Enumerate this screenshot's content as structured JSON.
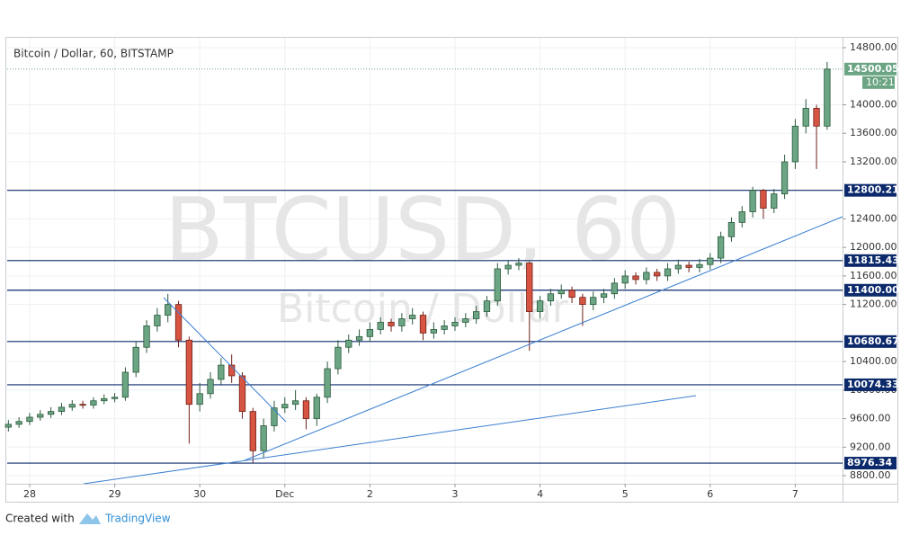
{
  "chart_data": {
    "type": "candlestick",
    "title": "Bitcoin / Dollar, 60, BITSTAMP",
    "watermark": "BTCUSD, 60",
    "watermark_subtitle": "Bitcoin / Dollar",
    "up_color": "#6ba583",
    "down_color": "#d75442",
    "level_color": "#0c2a6b",
    "x": [
      -0.25,
      -0.125,
      0,
      0.125,
      0.25,
      0.375,
      0.5,
      0.625,
      0.75,
      0.875,
      1,
      1.125,
      1.25,
      1.375,
      1.5,
      1.625,
      1.75,
      1.875,
      2,
      2.125,
      2.25,
      2.375,
      2.5,
      2.625,
      2.75,
      2.875,
      3,
      3.125,
      3.25,
      3.375,
      3.5,
      3.625,
      3.75,
      3.875,
      4,
      4.125,
      4.25,
      4.375,
      4.5,
      4.625,
      4.75,
      4.875,
      5,
      5.125,
      5.25,
      5.375,
      5.5,
      5.625,
      5.75,
      5.875,
      6,
      6.125,
      6.25,
      6.375,
      6.5,
      6.625,
      6.75,
      6.875,
      7,
      7.125,
      7.25,
      7.375,
      7.5,
      7.625,
      7.75,
      7.875,
      8,
      8.125,
      8.25,
      8.375,
      8.5,
      8.625,
      8.75,
      8.875,
      9,
      9.125,
      9.25,
      9.375
    ],
    "open": [
      9480,
      9520,
      9560,
      9620,
      9660,
      9700,
      9760,
      9800,
      9790,
      9850,
      9880,
      9900,
      10250,
      10600,
      10900,
      11050,
      11200,
      10700,
      9800,
      9950,
      10150,
      10350,
      10200,
      9700,
      9150,
      9500,
      9750,
      9800,
      9850,
      9600,
      9900,
      10300,
      10600,
      10700,
      10750,
      10850,
      10950,
      10900,
      11000,
      11050,
      10800,
      10850,
      10900,
      10950,
      11000,
      11100,
      11250,
      11700,
      11750,
      11780,
      11100,
      11250,
      11350,
      11400,
      11300,
      11200,
      11300,
      11350,
      11500,
      11600,
      11550,
      11650,
      11600,
      11700,
      11750,
      11720,
      11760,
      11850,
      12150,
      12350,
      12500,
      12800,
      12550,
      12750,
      13200,
      13700,
      13950,
      13700
    ],
    "high": [
      9580,
      9620,
      9680,
      9720,
      9760,
      9820,
      9860,
      9850,
      9900,
      9940,
      9960,
      10320,
      10680,
      10980,
      11150,
      11350,
      11250,
      10750,
      10100,
      10250,
      10450,
      10500,
      10250,
      9750,
      9600,
      9850,
      9900,
      10000,
      9900,
      9950,
      10400,
      10700,
      10780,
      10850,
      10950,
      11020,
      11000,
      11080,
      11150,
      11100,
      10950,
      10980,
      11020,
      11080,
      11180,
      11320,
      11780,
      11820,
      11850,
      11800,
      11320,
      11420,
      11480,
      11450,
      11350,
      11380,
      11420,
      11570,
      11680,
      11650,
      11720,
      11700,
      11780,
      11830,
      11800,
      11840,
      11920,
      12220,
      12420,
      12580,
      12850,
      12820,
      12820,
      13300,
      13800,
      14080,
      14000,
      14600
    ],
    "low": [
      9420,
      9470,
      9510,
      9570,
      9610,
      9650,
      9710,
      9740,
      9740,
      9800,
      9830,
      9850,
      10180,
      10520,
      10820,
      10950,
      10600,
      9250,
      9700,
      9880,
      10080,
      10100,
      9600,
      8980,
      9050,
      9420,
      9680,
      9720,
      9450,
      9500,
      9820,
      10220,
      10520,
      10620,
      10680,
      10780,
      10820,
      10820,
      10920,
      10700,
      10720,
      10780,
      10830,
      10880,
      10930,
      11030,
      11180,
      11620,
      11680,
      10550,
      11000,
      11180,
      11280,
      11220,
      10900,
      11120,
      11220,
      11280,
      11420,
      11480,
      11480,
      11530,
      11530,
      11630,
      11650,
      11650,
      11690,
      11780,
      12080,
      12280,
      12420,
      12400,
      12480,
      12680,
      13100,
      13600,
      13100,
      13650
    ],
    "close": [
      9520,
      9560,
      9620,
      9660,
      9700,
      9760,
      9800,
      9790,
      9850,
      9880,
      9900,
      10250,
      10600,
      10900,
      11050,
      11200,
      10700,
      9800,
      9950,
      10150,
      10350,
      10200,
      9700,
      9150,
      9500,
      9750,
      9800,
      9850,
      9600,
      9900,
      10300,
      10600,
      10700,
      10750,
      10850,
      10950,
      10900,
      11000,
      11050,
      10800,
      10850,
      10900,
      10950,
      11000,
      11100,
      11250,
      11700,
      11750,
      11780,
      11100,
      11250,
      11350,
      11400,
      11300,
      11200,
      11300,
      11350,
      11500,
      11600,
      11550,
      11650,
      11600,
      11700,
      11750,
      11720,
      11760,
      11850,
      12150,
      12350,
      12500,
      12800,
      12550,
      12750,
      13200,
      13700,
      13950,
      13700,
      14500
    ],
    "xlim": [
      -0.264,
      9.556
    ],
    "xticks": [
      {
        "value": 0,
        "label": "28"
      },
      {
        "value": 1,
        "label": "29"
      },
      {
        "value": 2,
        "label": "30"
      },
      {
        "value": 3,
        "label": "Dec"
      },
      {
        "value": 4,
        "label": "2"
      },
      {
        "value": 5,
        "label": "3"
      },
      {
        "value": 6,
        "label": "4"
      },
      {
        "value": 7,
        "label": "5"
      },
      {
        "value": 8,
        "label": "6"
      },
      {
        "value": 9,
        "label": "7"
      }
    ],
    "ylim": [
      8687,
      14939
    ],
    "yticks": [
      {
        "value": 8800,
        "label": "8800.00"
      },
      {
        "value": 9200,
        "label": "9200.00"
      },
      {
        "value": 9600,
        "label": "9600.00"
      },
      {
        "value": 10000,
        "label": "10000.00"
      },
      {
        "value": 10400,
        "label": "10400.00"
      },
      {
        "value": 11200,
        "label": "11200.00"
      },
      {
        "value": 11600,
        "label": "11600.00"
      },
      {
        "value": 12000,
        "label": "12000.00"
      },
      {
        "value": 12400,
        "label": "12400.00"
      },
      {
        "value": 13200,
        "label": "13200.00"
      },
      {
        "value": 13600,
        "label": "13600.00"
      },
      {
        "value": 14000,
        "label": "14000.00"
      },
      {
        "value": 14800,
        "label": "14800.00"
      }
    ],
    "grid": true,
    "levels": [
      12800.21,
      11815.43,
      {
        "value": 11400,
        "label": "11400.00"
      },
      10680.67,
      10074.33,
      8976.34
    ],
    "last_price": 14500.05,
    "countdown": "10:21"
  },
  "footer": {
    "created_with": "Created with",
    "brand": "TradingView"
  }
}
